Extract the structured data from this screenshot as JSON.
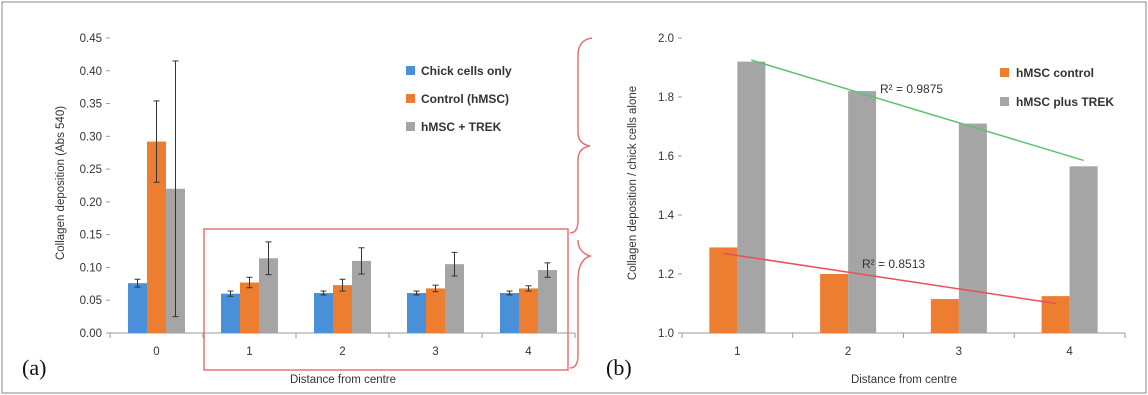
{
  "chart_data": [
    {
      "panel_label": "(a)",
      "type": "bar",
      "xlabel": "Distance from centre",
      "ylabel": "Collagen deposition (Abs 540)",
      "ylim": [
        0,
        0.45
      ],
      "yticks": [
        "0.00",
        "0.05",
        "0.10",
        "0.15",
        "0.20",
        "0.25",
        "0.30",
        "0.35",
        "0.40",
        "0.45"
      ],
      "categories": [
        "0",
        "1",
        "2",
        "3",
        "4"
      ],
      "legend_position": "top-right",
      "grid": false,
      "series": [
        {
          "name": "Chick cells only",
          "color": "#4a90d9",
          "values": [
            0.076,
            0.06,
            0.061,
            0.061,
            0.061
          ],
          "errors": [
            0.006,
            0.004,
            0.003,
            0.003,
            0.003
          ]
        },
        {
          "name": "Control (hMSC)",
          "color": "#ed7d31",
          "values": [
            0.292,
            0.077,
            0.073,
            0.068,
            0.068
          ],
          "errors": [
            0.062,
            0.008,
            0.009,
            0.005,
            0.004
          ]
        },
        {
          "name": "hMSC + TREK",
          "color": "#a5a5a5",
          "values": [
            0.22,
            0.114,
            0.11,
            0.105,
            0.096
          ],
          "errors": [
            0.195,
            0.025,
            0.02,
            0.018,
            0.011
          ]
        }
      ],
      "annotation": "highlight box around distances 1-4"
    },
    {
      "panel_label": "(b)",
      "type": "bar",
      "xlabel": "Distance from centre",
      "ylabel": "Collagen deposition / chick cells alone",
      "ylim": [
        1.0,
        2.0
      ],
      "yticks": [
        "1.0",
        "1.2",
        "1.4",
        "1.6",
        "1.8",
        "2.0"
      ],
      "categories": [
        "1",
        "2",
        "3",
        "4"
      ],
      "legend_position": "top-right",
      "grid": false,
      "series": [
        {
          "name": "hMSC control",
          "color": "#ed7d31",
          "values": [
            1.29,
            1.2,
            1.115,
            1.125
          ]
        },
        {
          "name": "hMSC plus TREK",
          "color": "#a5a5a5",
          "values": [
            1.92,
            1.82,
            1.71,
            1.565
          ]
        }
      ],
      "trendlines": [
        {
          "series": "hMSC control",
          "color": "#e8505b",
          "label": "R² = 0.8513",
          "start": 1.27,
          "end": 1.1
        },
        {
          "series": "hMSC plus TREK",
          "color": "#5cc36e",
          "label": "R² = 0.9875",
          "start": 1.925,
          "end": 1.585
        }
      ]
    }
  ],
  "colors": {
    "frame": "#888888",
    "highlight": "#e57373",
    "axis": "#9a9a9a",
    "errorbar": "#333333"
  }
}
